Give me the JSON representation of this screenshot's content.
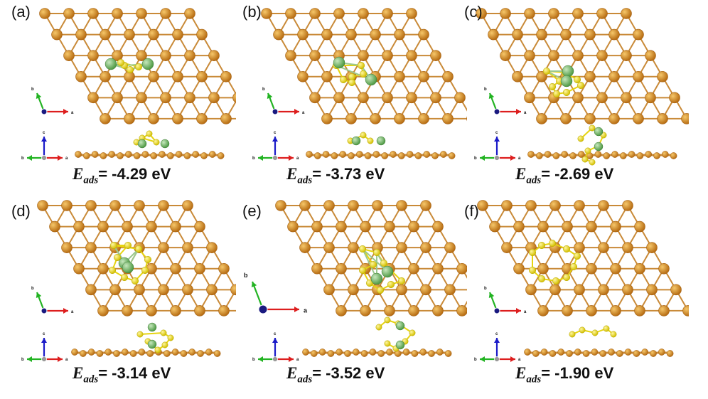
{
  "colors": {
    "metal": "#d98e2a",
    "metal_edge": "#a45f10",
    "bond": "#c98a38",
    "sulfur": "#f0e01a",
    "cluster": "#7bbf6e",
    "axis_a": "#dd1e1e",
    "axis_b": "#22b322",
    "axis_c": "#1a1ac8"
  },
  "energy_label": {
    "symbol": "E",
    "subscript": "ads"
  },
  "axes": {
    "a": "a",
    "b": "b",
    "c": "c"
  },
  "panels": [
    {
      "label": "(a)",
      "energy": "= -4.29 eV"
    },
    {
      "label": "(b)",
      "energy": "= -3.73 eV"
    },
    {
      "label": "(c)",
      "energy": "= -2.69 eV"
    },
    {
      "label": "(d)",
      "energy": "= -3.14 eV"
    },
    {
      "label": "(e)",
      "energy": "= -3.52 eV"
    },
    {
      "label": "(f)",
      "energy": "= -1.90 eV"
    }
  ]
}
